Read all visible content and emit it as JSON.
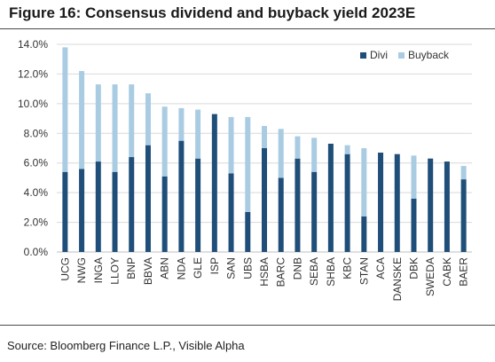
{
  "title": "Figure 16: Consensus dividend and buyback yield 2023E",
  "source": "Source: Bloomberg Finance L.P., Visible Alpha",
  "colors": {
    "divi": "#1f4e79",
    "buyback": "#a9cce3",
    "grid": "#d9d9d9"
  },
  "chart_data": {
    "type": "bar",
    "stacked": true,
    "title": "",
    "xlabel": "",
    "ylabel": "",
    "ylim": [
      0,
      14
    ],
    "yticks": [
      "0.0%",
      "2.0%",
      "4.0%",
      "6.0%",
      "8.0%",
      "10.0%",
      "12.0%",
      "14.0%"
    ],
    "ytick_values": [
      0,
      2,
      4,
      6,
      8,
      10,
      12,
      14
    ],
    "grid": true,
    "legend": "top-right",
    "categories": [
      "UCG",
      "NWG",
      "INGA",
      "LLOY",
      "BNP",
      "BBVA",
      "ABN",
      "NDA",
      "GLE",
      "ISP",
      "SAN",
      "UBS",
      "HSBA",
      "BARC",
      "DNB",
      "SEBA",
      "SHBA",
      "KBC",
      "STAN",
      "ACA",
      "DANSKE",
      "DBK",
      "SWEDA",
      "CABK",
      "BAER"
    ],
    "series": [
      {
        "name": "Divi",
        "values": [
          5.4,
          5.6,
          6.1,
          5.4,
          6.4,
          7.2,
          5.1,
          7.5,
          6.3,
          9.3,
          5.3,
          2.7,
          7.0,
          5.0,
          6.3,
          5.4,
          7.3,
          6.6,
          2.4,
          6.7,
          6.6,
          3.6,
          6.3,
          6.1,
          4.9
        ]
      },
      {
        "name": "Buyback",
        "values": [
          8.4,
          6.6,
          5.2,
          5.9,
          4.9,
          3.5,
          4.7,
          2.2,
          3.3,
          0.0,
          3.8,
          6.4,
          1.5,
          3.3,
          1.5,
          2.3,
          0.0,
          0.6,
          4.6,
          0.0,
          0.0,
          2.9,
          0.0,
          0.0,
          0.9
        ]
      }
    ]
  }
}
